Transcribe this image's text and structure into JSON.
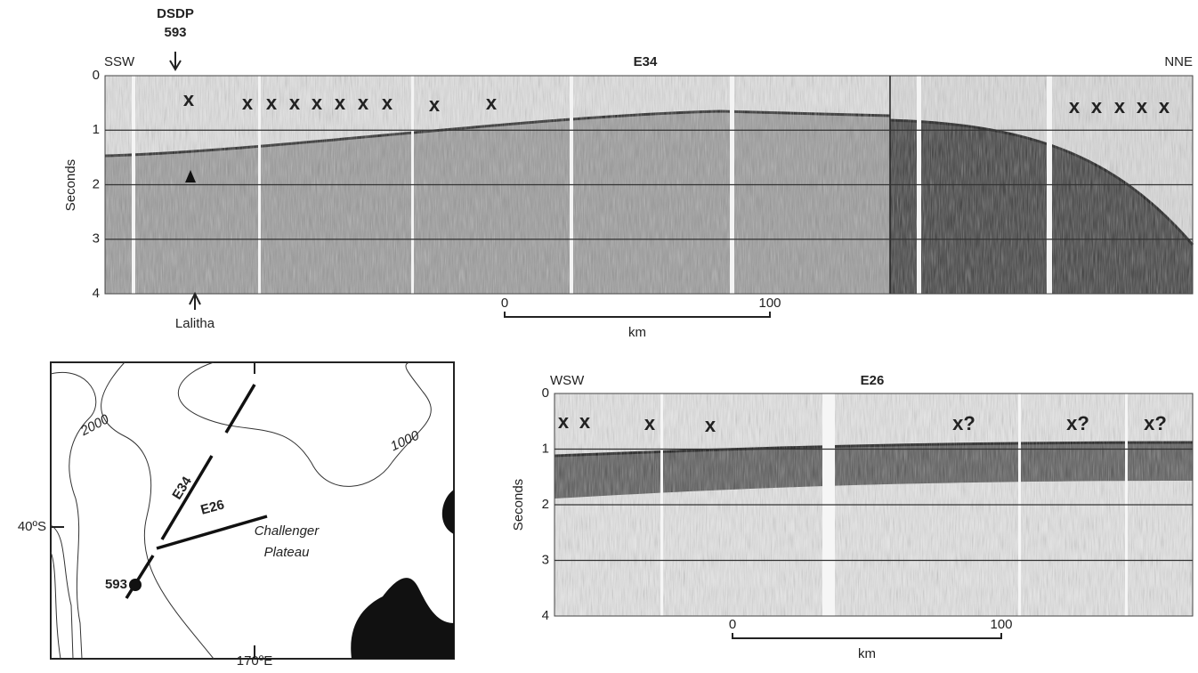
{
  "figure": {
    "profile_e34": {
      "label": "E34",
      "left_direction": "SSW",
      "right_direction": "NNE",
      "site_label": "DSDP",
      "site_number": "593",
      "feature": "Lalitha",
      "axis_title": "Seconds",
      "yticks": [
        0,
        1,
        2,
        3,
        4
      ],
      "markers": [
        "x",
        "x",
        "x",
        "x",
        "x",
        "x",
        "x",
        "x",
        "x",
        "x",
        "x",
        "x",
        "x",
        "x",
        "x"
      ],
      "scale": {
        "ticks": [
          0,
          100
        ],
        "unit": "km"
      }
    },
    "profile_e26": {
      "label": "E26",
      "left_direction": "WSW",
      "axis_title": "Seconds",
      "yticks": [
        0,
        1,
        2,
        3,
        4
      ],
      "markers": [
        "x",
        "x",
        "x",
        "x",
        "x?",
        "x?",
        "x?"
      ],
      "scale": {
        "ticks": [
          0,
          100
        ],
        "unit": "km"
      }
    },
    "map": {
      "contours": [
        "2000",
        "1000"
      ],
      "tracks": [
        "E34",
        "E26"
      ],
      "region": [
        "Challenger",
        "Plateau"
      ],
      "latitude": "40ºS",
      "longitude": "170ºE",
      "site": "593"
    }
  }
}
